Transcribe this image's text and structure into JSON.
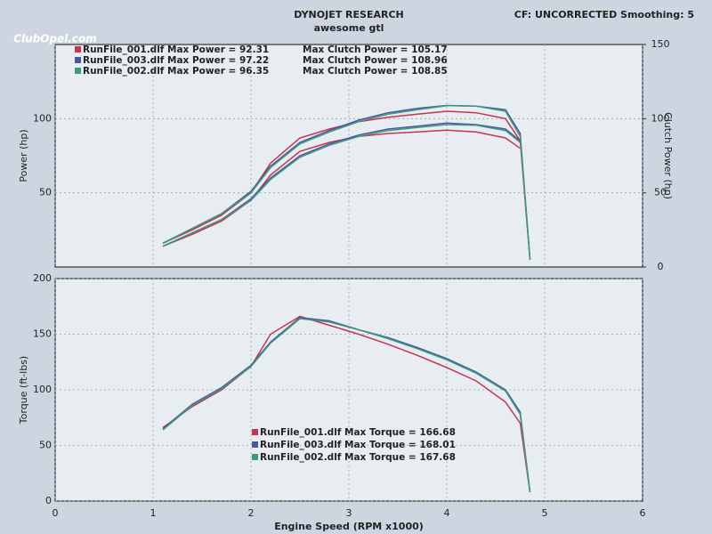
{
  "header": {
    "watermark": "ClubOpel.com",
    "title": "DYNOJET RESEARCH",
    "subtitle": "awesome gtl",
    "settings": "CF: UNCORRECTED  Smoothing: 5"
  },
  "chart_data": [
    {
      "type": "line",
      "ylabel": "Power (hp)",
      "y2label": "Clutch Power (hp)",
      "x": [
        1.1,
        1.4,
        1.7,
        2.0,
        2.2,
        2.5,
        2.8,
        3.1,
        3.4,
        3.7,
        4.0,
        4.3,
        4.6,
        4.75,
        4.85
      ],
      "xlim": [
        0,
        6
      ],
      "xticks": [
        0,
        1,
        2,
        3,
        4,
        5,
        6
      ],
      "ylim": [
        0,
        150
      ],
      "yticks": [
        50,
        100
      ],
      "y2lim": [
        0,
        150
      ],
      "y2ticks": [
        0,
        50,
        100,
        150
      ],
      "grid": true,
      "series": [
        {
          "name": "RunFile_001.dlf Max Power = 92.31",
          "color": "#c8344e",
          "values": [
            14,
            22,
            31,
            45,
            62,
            78,
            84,
            88,
            90,
            91,
            92.3,
            91,
            87,
            80,
            null
          ]
        },
        {
          "name": "RunFile_003.dlf Max Power = 97.22",
          "color": "#4a55a8",
          "values": [
            14,
            23,
            32,
            46,
            60,
            75,
            83,
            89,
            93,
            95,
            97,
            96,
            93,
            85,
            null
          ]
        },
        {
          "name": "RunFile_002.dlf Max Power = 96.35",
          "color": "#3f9a7c",
          "values": [
            14,
            23,
            32,
            45,
            59,
            74,
            82,
            88,
            92,
            94,
            96,
            95.5,
            92,
            84,
            null
          ]
        },
        {
          "name": "Max Clutch Power = 105.17",
          "color": "#c8344e",
          "axis": "y2",
          "values": [
            16,
            25,
            35,
            50,
            70,
            87,
            93,
            98,
            101,
            103,
            105,
            104,
            100,
            85,
            5
          ]
        },
        {
          "name": "Max Clutch Power = 108.96",
          "color": "#4a55a8",
          "axis": "y2",
          "values": [
            16,
            26,
            36,
            51,
            68,
            84,
            92,
            99,
            104,
            107,
            108.9,
            108.5,
            106,
            90,
            5
          ]
        },
        {
          "name": "Max Clutch Power = 108.85",
          "color": "#3f9a7c",
          "axis": "y2",
          "values": [
            16,
            26,
            36,
            50,
            67,
            83,
            91,
            98,
            103,
            106,
            108.8,
            108.5,
            105,
            88,
            5
          ]
        }
      ]
    },
    {
      "type": "line",
      "ylabel": "Torque (ft-lbs)",
      "xlabel": "Engine Speed (RPM x1000)",
      "x": [
        1.1,
        1.4,
        1.7,
        2.0,
        2.2,
        2.5,
        2.8,
        3.1,
        3.4,
        3.7,
        4.0,
        4.3,
        4.6,
        4.75,
        4.85
      ],
      "xlim": [
        0,
        6
      ],
      "xticks": [
        0,
        1,
        2,
        3,
        4,
        5,
        6
      ],
      "ylim": [
        0,
        200
      ],
      "yticks": [
        0,
        50,
        100,
        150,
        200
      ],
      "grid": true,
      "series": [
        {
          "name": "RunFile_001.dlf Max Torque = 166.68",
          "color": "#c8344e",
          "values": [
            66,
            85,
            100,
            121,
            150,
            166,
            158,
            150,
            141,
            131,
            120,
            108,
            89,
            70,
            8
          ]
        },
        {
          "name": "RunFile_003.dlf Max Torque = 168.01",
          "color": "#4a55a8",
          "values": [
            65,
            87,
            102,
            122,
            143,
            165,
            162,
            154,
            147,
            138,
            128,
            116,
            100,
            80,
            8
          ]
        },
        {
          "name": "RunFile_002.dlf Max Torque = 167.68",
          "color": "#3f9a7c",
          "values": [
            64,
            86,
            101,
            121,
            142,
            164,
            161,
            154,
            146,
            137,
            127,
            115,
            99,
            78,
            8
          ]
        }
      ]
    }
  ]
}
